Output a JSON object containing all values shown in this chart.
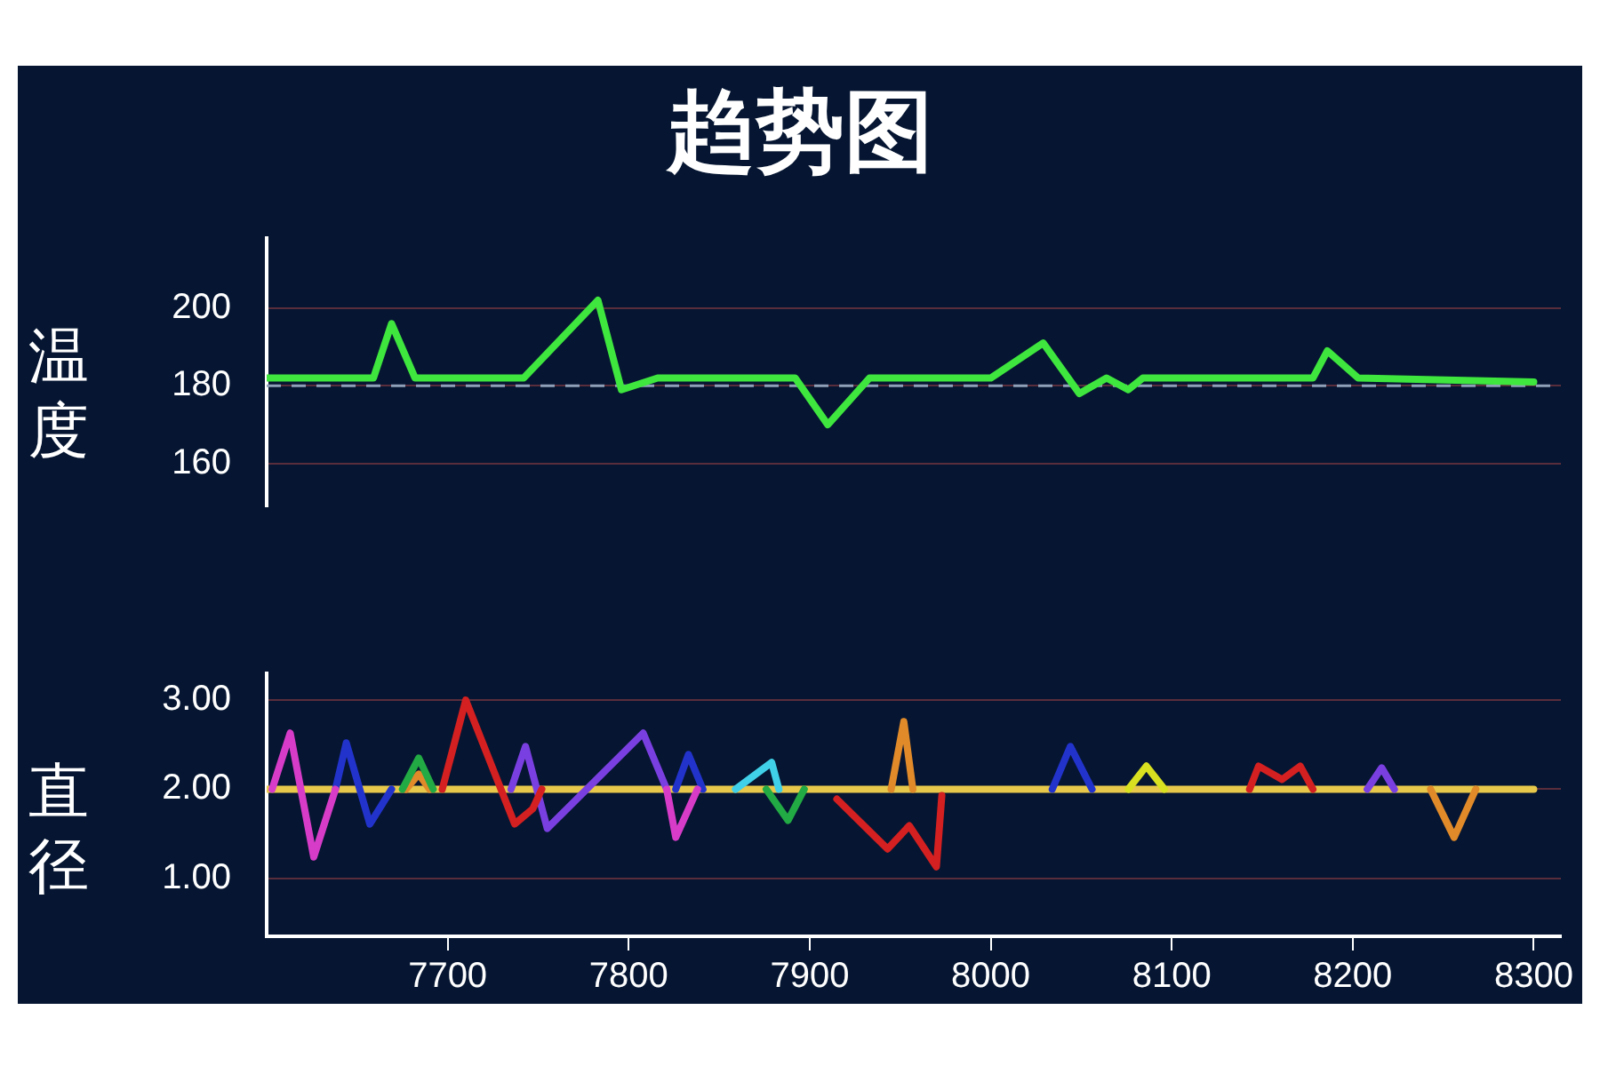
{
  "chart_data": [
    {
      "type": "line",
      "title": "趋势图",
      "ylabel": "温度",
      "x": [
        7600,
        7659,
        7669,
        7682,
        7742,
        7783,
        7796,
        7816,
        7892,
        7910,
        7933,
        8000,
        8029,
        8049,
        8064,
        8076,
        8084,
        8178,
        8186,
        8203,
        8300
      ],
      "series": [
        {
          "color": "#3ee63e",
          "values": [
            182,
            182,
            196,
            182,
            182,
            202,
            179,
            182,
            182,
            170,
            182,
            182,
            191,
            178,
            182,
            179,
            182,
            182,
            189,
            182,
            181
          ]
        }
      ],
      "xlim": [
        7600,
        8315
      ],
      "xticks": [
        7700,
        7800,
        7900,
        8000,
        8100,
        8200,
        8300
      ],
      "ylim": [
        149,
        218
      ],
      "yticks": [
        160,
        180,
        200
      ],
      "grid": "y",
      "tick_labels": "y",
      "ref_lines": [
        {
          "axis": "y",
          "value": 180,
          "color": "#8fa0b8",
          "line_style": "dashed"
        }
      ]
    },
    {
      "type": "line",
      "ylabel": "直径",
      "series": [
        {
          "color": "#d63cc8",
          "x": [
            7603,
            7613,
            7626,
            7638,
            7700,
            7821,
            7826,
            7838
          ],
          "values": [
            2,
            2.63,
            1.24,
            2,
            null,
            2,
            1.46,
            2
          ]
        },
        {
          "color": "#2233cc",
          "x": [
            7638,
            7644,
            7657,
            7669,
            7700,
            7826,
            7833,
            7841,
            7900,
            8034,
            8044,
            8056
          ],
          "values": [
            2,
            2.52,
            1.61,
            2,
            null,
            2,
            2.39,
            2,
            null,
            2,
            2.48,
            2
          ]
        },
        {
          "color": "#22aa44",
          "x": [
            7675,
            7684,
            7692,
            7780,
            7876,
            7888,
            7897
          ],
          "values": [
            2,
            2.35,
            2,
            null,
            2,
            1.65,
            2
          ]
        },
        {
          "color": "#e08a2a",
          "x": [
            7677,
            7684,
            7690,
            7800,
            7945,
            7952,
            7957,
            8100,
            8243,
            8256,
            8268
          ],
          "values": [
            2,
            2.17,
            2,
            null,
            2,
            2.76,
            2,
            null,
            2,
            1.46,
            2
          ]
        },
        {
          "color": "#d42020",
          "x": [
            7697,
            7710,
            7737,
            7747,
            7752,
            7850,
            7915,
            7943,
            7955,
            7970,
            7973,
            8100,
            8143,
            8148,
            8161,
            8171,
            8178
          ],
          "values": [
            2,
            3.0,
            1.61,
            1.78,
            2,
            null,
            1.89,
            1.33,
            1.59,
            1.13,
            1.93,
            null,
            2,
            2.26,
            2.11,
            2.26,
            2
          ]
        },
        {
          "color": "#7a3fe0",
          "x": [
            7735,
            7743,
            7755,
            7808,
            7821,
            8000,
            8208,
            8216,
            8223
          ],
          "values": [
            2,
            2.48,
            1.56,
            2.63,
            2,
            null,
            2,
            2.24,
            2
          ]
        },
        {
          "color": "#40d0e8",
          "x": [
            7859,
            7879,
            7883
          ],
          "values": [
            2,
            2.3,
            2
          ]
        },
        {
          "color": "#d8e020",
          "x": [
            8076,
            8086,
            8096
          ],
          "values": [
            2,
            2.26,
            2
          ]
        },
        {
          "color": "#e8c84a",
          "x": [
            7600,
            8300
          ],
          "values": [
            2,
            2
          ]
        }
      ],
      "xlim": [
        7600,
        8315
      ],
      "xticks": [
        7700,
        7800,
        7900,
        8000,
        8100,
        8200,
        8300
      ],
      "ylim": [
        0.35,
        3.3
      ],
      "yticks": [
        {
          "value": 1,
          "label": "1.00"
        },
        {
          "value": 2,
          "label": "2.00"
        },
        {
          "value": 3,
          "label": "3.00"
        }
      ],
      "grid": "y"
    }
  ]
}
